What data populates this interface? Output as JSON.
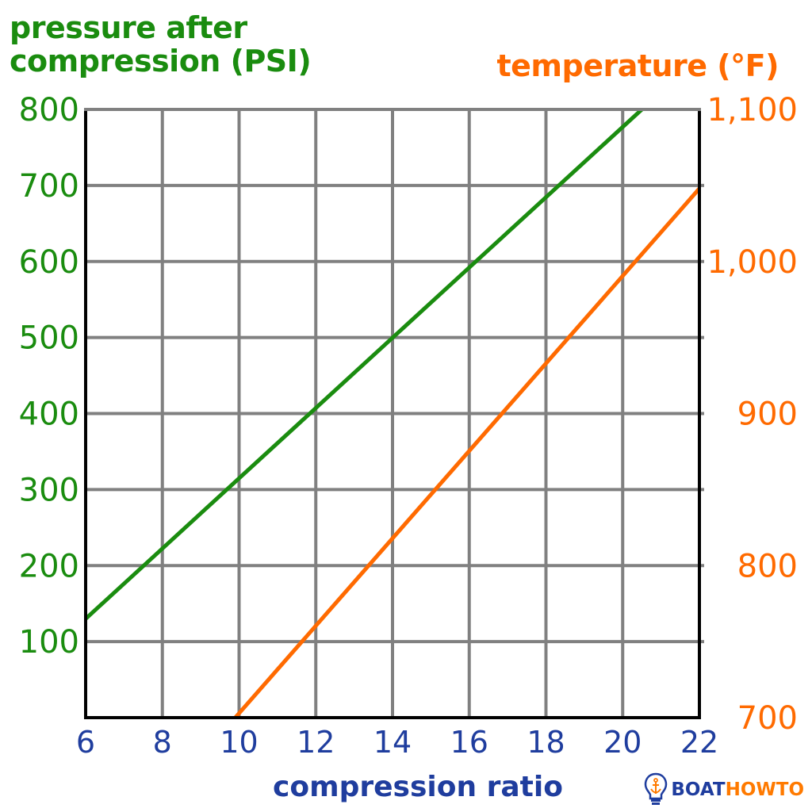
{
  "colors": {
    "pressure": "#1a8c0f",
    "temperature": "#ff6a00",
    "xaxis": "#1f3d9e",
    "grid": "#808080",
    "axis": "#000000",
    "brand_blue": "#1f3d9e",
    "brand_orange": "#ff7a00"
  },
  "chart_data": {
    "type": "line",
    "xlabel": "compression ratio",
    "ylabel_left": "pressure after compression (PSI)",
    "ylabel_right": "temperature (°F)",
    "xlim": [
      6,
      22
    ],
    "ylim_left": [
      0,
      800
    ],
    "ylim_right": [
      700,
      1100
    ],
    "x_ticks": [
      "6",
      "8",
      "10",
      "12",
      "14",
      "16",
      "18",
      "20",
      "22"
    ],
    "y_ticks_left": [
      "100",
      "200",
      "300",
      "400",
      "500",
      "600",
      "700",
      "800"
    ],
    "y_ticks_right": [
      "700",
      "800",
      "900",
      "1,000",
      "1,100"
    ],
    "grid": true,
    "series": [
      {
        "axis": "left",
        "color": "#1a8c0f",
        "x": [
          6,
          20.5
        ],
        "y": [
          130,
          800
        ]
      },
      {
        "axis": "right",
        "color": "#ff6a00",
        "x": [
          9.9,
          22
        ],
        "y": [
          700,
          1048
        ]
      }
    ]
  },
  "brand": {
    "part1": "BOAT",
    "part2": "HOWTO"
  }
}
